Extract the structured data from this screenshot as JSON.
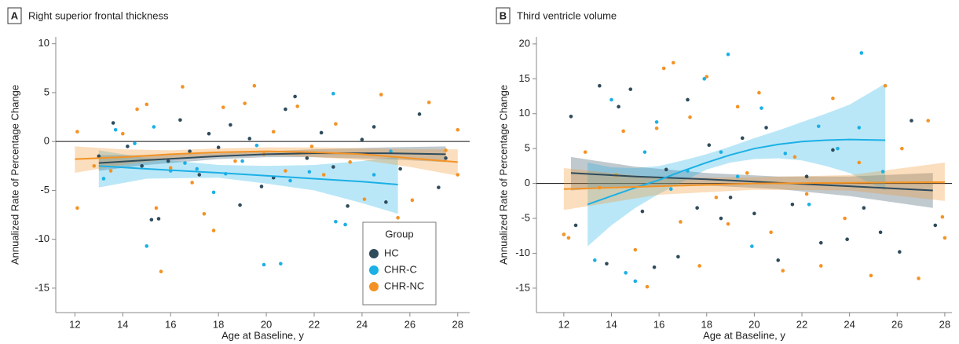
{
  "chart_data": [
    {
      "type": "scatter",
      "panel_label": "A",
      "title": "Right superior frontal thickness",
      "x_label": "Age at Baseline, y",
      "y_label": "Annualized Rate of Percentage Change",
      "xlim": [
        11.2,
        28.5
      ],
      "xticks": [
        12,
        14,
        16,
        18,
        20,
        22,
        24,
        26,
        28
      ],
      "ylim": [
        -17.5,
        10.7
      ],
      "yticks": [
        -15,
        -10,
        -5,
        0,
        5,
        10
      ],
      "hline": 0,
      "legend": "lower right",
      "legend_title": "Group",
      "series": [
        {
          "name": "HC",
          "color": "#2f4b5c",
          "x": [
            13.0,
            13.6,
            14.2,
            14.8,
            15.2,
            15.5,
            15.9,
            16.4,
            16.8,
            17.2,
            17.6,
            18.0,
            18.5,
            18.9,
            19.3,
            19.8,
            20.3,
            20.8,
            21.2,
            21.7,
            22.3,
            22.8,
            23.4,
            24.0,
            24.5,
            25.0,
            25.6,
            26.4,
            27.2,
            27.5
          ],
          "values": [
            -1.5,
            1.9,
            -0.5,
            -2.5,
            -8.0,
            -7.9,
            -2.0,
            2.2,
            -1.0,
            -3.4,
            0.8,
            -0.6,
            1.7,
            -6.5,
            0.3,
            -4.6,
            -3.7,
            3.3,
            4.6,
            -1.7,
            0.9,
            -2.6,
            -6.6,
            0.2,
            1.5,
            -6.2,
            -2.8,
            2.8,
            -4.7,
            -1.7
          ],
          "fit_x": [
            13,
            15,
            18,
            20,
            22,
            25,
            27.5
          ],
          "fit_values": [
            -2.2,
            -1.9,
            -1.5,
            -1.3,
            -1.2,
            -1.2,
            -1.3
          ],
          "fit_lower": [
            -3.0,
            -2.4,
            -1.8,
            -1.6,
            -1.6,
            -1.8,
            -2.1
          ],
          "fit_upper": [
            -1.4,
            -1.4,
            -1.2,
            -1.0,
            -0.8,
            -0.6,
            -0.5
          ]
        },
        {
          "name": "CHR-C",
          "color": "#1bb0e6",
          "x": [
            13.2,
            13.7,
            14.5,
            15.0,
            15.3,
            16.0,
            16.6,
            17.1,
            17.8,
            18.3,
            19.0,
            19.6,
            19.9,
            20.6,
            21.0,
            21.8,
            22.8,
            22.9,
            23.3,
            24.5,
            25.2
          ],
          "values": [
            -3.8,
            1.2,
            -0.2,
            -10.7,
            1.5,
            -3.0,
            -2.2,
            -2.8,
            -5.2,
            -3.3,
            -2.0,
            -0.4,
            -12.6,
            -12.5,
            -4.0,
            -3.1,
            4.9,
            -8.2,
            -8.5,
            -3.4,
            -1.0
          ],
          "fit_x": [
            13,
            15,
            18,
            20,
            22,
            24,
            25.5
          ],
          "fit_values": [
            -2.5,
            -2.8,
            -3.2,
            -3.5,
            -3.8,
            -4.1,
            -4.4
          ],
          "fit_lower": [
            -4.7,
            -3.8,
            -3.7,
            -4.3,
            -5.0,
            -6.3,
            -7.4
          ],
          "fit_upper": [
            -0.9,
            -1.7,
            -2.4,
            -2.5,
            -2.4,
            -2.0,
            -1.5
          ]
        },
        {
          "name": "CHR-NC",
          "color": "#f39325",
          "x": [
            12.1,
            12.1,
            12.8,
            13.5,
            14.0,
            14.6,
            15.0,
            15.4,
            15.6,
            16.0,
            16.5,
            16.9,
            17.4,
            17.8,
            18.2,
            18.7,
            19.1,
            19.5,
            19.9,
            20.3,
            20.8,
            21.3,
            21.9,
            22.4,
            22.9,
            23.5,
            24.1,
            24.8,
            25.5,
            26.1,
            26.8,
            27.5,
            28.0,
            28.0
          ],
          "values": [
            1.0,
            -6.8,
            -2.5,
            -3.0,
            0.8,
            3.3,
            3.8,
            -6.8,
            -13.3,
            -2.7,
            5.6,
            -4.2,
            -7.4,
            -9.1,
            3.5,
            -2.0,
            3.9,
            5.7,
            -1.3,
            1.0,
            -3.0,
            3.6,
            -0.5,
            -3.4,
            1.8,
            -2.1,
            -5.9,
            4.8,
            -7.8,
            -6.0,
            4.0,
            -0.9,
            1.2,
            -3.4
          ],
          "fit_x": [
            12,
            14,
            16,
            18,
            20,
            22,
            24,
            26,
            28
          ],
          "fit_values": [
            -1.8,
            -1.6,
            -1.3,
            -1.1,
            -1.0,
            -1.1,
            -1.3,
            -1.7,
            -2.1
          ],
          "fit_lower": [
            -3.2,
            -2.4,
            -1.8,
            -1.5,
            -1.4,
            -1.6,
            -1.9,
            -2.6,
            -3.5
          ],
          "fit_upper": [
            -0.5,
            -0.8,
            -0.9,
            -0.7,
            -0.6,
            -0.6,
            -0.7,
            -0.8,
            -0.8
          ]
        }
      ]
    },
    {
      "type": "scatter",
      "panel_label": "B",
      "title": "Third ventricle volume",
      "x_label": "Age at Baseline, y",
      "y_label": "Annualized Rate of Percentage Change",
      "xlim": [
        10.85,
        28.3
      ],
      "xticks": [
        12,
        14,
        16,
        18,
        20,
        22,
        24,
        26,
        28
      ],
      "ylim": [
        -18.5,
        21
      ],
      "yticks": [
        -15,
        -10,
        -5,
        0,
        5,
        10,
        15,
        20
      ],
      "hline": 0,
      "series": [
        {
          "color": "#2f4b5c",
          "x": [
            12.3,
            12.5,
            13.5,
            13.8,
            14.3,
            14.8,
            15.3,
            15.8,
            16.3,
            16.8,
            17.2,
            17.6,
            18.1,
            18.6,
            19.0,
            19.5,
            20.0,
            20.5,
            21.0,
            21.6,
            22.2,
            22.8,
            23.3,
            23.9,
            24.6,
            25.3,
            26.1,
            26.6,
            27.6
          ],
          "values": [
            9.6,
            -6.0,
            14.0,
            -11.5,
            11.0,
            13.5,
            -4.0,
            -12.0,
            2.0,
            -10.5,
            12.0,
            -3.5,
            5.5,
            -5.0,
            -2.0,
            6.5,
            -4.3,
            8.0,
            -11.0,
            -3.0,
            1.0,
            -8.5,
            4.8,
            -8.0,
            -3.5,
            -7.0,
            -9.8,
            9.0,
            -6.0
          ],
          "fit_x": [
            12.3,
            15,
            18,
            21,
            24,
            27.5
          ],
          "fit_values": [
            1.5,
            1.0,
            0.6,
            0.1,
            -0.4,
            -1.0
          ],
          "fit_lower": [
            -1.0,
            -0.4,
            -0.3,
            -0.8,
            -1.8,
            -3.5
          ],
          "fit_upper": [
            3.8,
            2.4,
            1.5,
            1.0,
            1.0,
            1.5
          ]
        },
        {
          "color": "#1bb0e6",
          "x": [
            13.3,
            14.0,
            14.6,
            15.0,
            15.4,
            15.9,
            16.5,
            17.2,
            17.9,
            18.6,
            18.9,
            19.3,
            19.9,
            20.3,
            21.3,
            22.3,
            22.7,
            23.5,
            24.4,
            24.5,
            25.4
          ],
          "values": [
            -11.0,
            12.0,
            -12.8,
            -14.0,
            4.5,
            8.8,
            -0.8,
            1.8,
            15.0,
            4.5,
            18.5,
            1.0,
            -9.0,
            10.8,
            4.3,
            -3.0,
            8.2,
            5.0,
            8.0,
            18.7,
            1.7
          ],
          "fit_x": [
            13,
            14,
            15,
            16,
            17,
            18,
            19,
            20,
            21,
            22,
            23,
            24,
            25.5
          ],
          "fit_values": [
            -3.0,
            -1.8,
            -0.6,
            0.5,
            1.8,
            3.0,
            4.1,
            5.0,
            5.6,
            6.0,
            6.2,
            6.3,
            6.2
          ],
          "fit_lower": [
            -9.0,
            -6.0,
            -3.5,
            -1.5,
            0.3,
            2.0,
            3.0,
            3.5,
            3.6,
            3.3,
            2.5,
            1.5,
            -1.0
          ],
          "fit_upper": [
            3.0,
            2.3,
            2.2,
            2.5,
            3.3,
            4.2,
            5.3,
            6.5,
            7.6,
            8.8,
            10.0,
            11.3,
            14.3
          ]
        },
        {
          "color": "#f39325",
          "x": [
            12.0,
            12.2,
            12.9,
            13.5,
            14.2,
            14.5,
            15.0,
            15.5,
            15.9,
            16.2,
            16.6,
            16.9,
            17.3,
            17.7,
            18.0,
            18.4,
            18.9,
            19.3,
            19.7,
            20.2,
            20.7,
            21.2,
            21.7,
            22.2,
            22.8,
            23.3,
            23.8,
            24.4,
            24.9,
            25.5,
            26.2,
            26.9,
            27.3,
            27.9,
            28.0
          ],
          "values": [
            -7.3,
            -7.8,
            4.5,
            -0.6,
            1.2,
            7.5,
            -9.5,
            -14.8,
            7.9,
            16.5,
            17.3,
            -5.5,
            9.5,
            -11.8,
            15.3,
            -2.0,
            -5.8,
            11.0,
            1.5,
            13.0,
            -7.0,
            -12.5,
            3.8,
            -1.5,
            -11.8,
            12.2,
            -5.0,
            3.0,
            -13.2,
            14.0,
            5.0,
            -13.6,
            9.0,
            -4.8,
            -7.8
          ],
          "fit_x": [
            12,
            16,
            20,
            24,
            28
          ],
          "fit_values": [
            -0.8,
            -0.4,
            0.0,
            0.1,
            0.2
          ],
          "fit_lower": [
            -3.8,
            -1.6,
            -0.9,
            -1.0,
            -2.5
          ],
          "fit_upper": [
            2.2,
            0.8,
            0.9,
            1.2,
            3.0
          ]
        }
      ]
    }
  ]
}
